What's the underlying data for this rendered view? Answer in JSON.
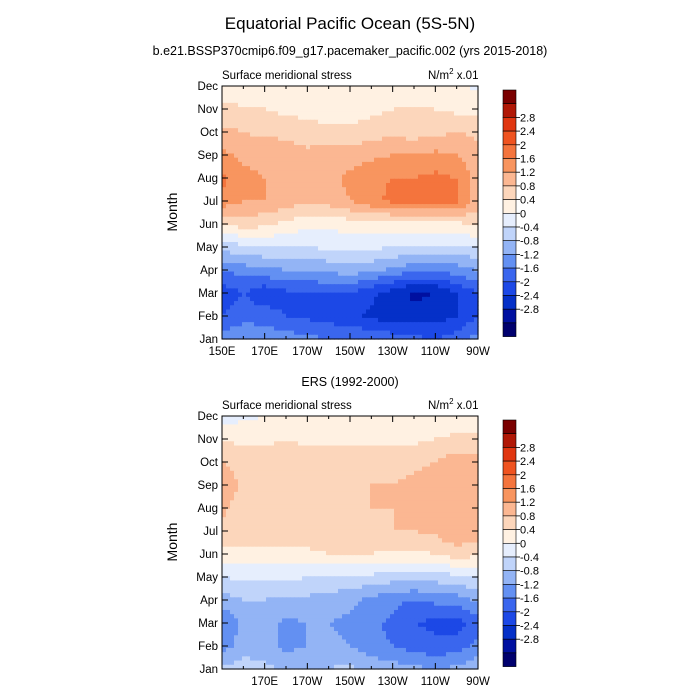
{
  "title": "Equatorial Pacific Ocean (5S-5N)",
  "colors": {
    "levels": [
      "#00006e",
      "#0010a0",
      "#0530c8",
      "#1c48e6",
      "#3a66ee",
      "#6390f2",
      "#93b4f5",
      "#c0d4fa",
      "#e6eefd",
      "#fff1e2",
      "#fcd6bb",
      "#fbb792",
      "#f8955f",
      "#f4743d",
      "#ef5320",
      "#e03610",
      "#b01806",
      "#7a0000"
    ]
  },
  "chart_data": [
    {
      "type": "heatmap",
      "title": "b.e21.BSSP370cmip6.f09_g17.pacemaker_pacific.002 (yrs 2015-2018)",
      "left_label": "Surface meridional stress",
      "units_prefix": "N/m",
      "units_exp": "2",
      "units_suffix": " x.01",
      "ylabel": "Month",
      "y_ticks": [
        "Jan",
        "Feb",
        "Mar",
        "Apr",
        "May",
        "Jun",
        "Jul",
        "Aug",
        "Sep",
        "Oct",
        "Nov",
        "Dec"
      ],
      "x_ticks": [
        "150E",
        "170E",
        "170W",
        "150W",
        "130W",
        "110W",
        "90W"
      ],
      "x": [
        150,
        160,
        170,
        180,
        190,
        200,
        210,
        220,
        230,
        240,
        250,
        260,
        270
      ],
      "values": [
        [
          -1.4,
          -1.2,
          -1.3,
          -1.4,
          -1.5,
          -1.6,
          -1.6,
          -1.7,
          -1.8,
          -1.9,
          -2.0,
          -1.8,
          -1.4
        ],
        [
          -2.0,
          -1.8,
          -1.8,
          -2.0,
          -2.1,
          -2.2,
          -2.3,
          -2.5,
          -2.6,
          -2.6,
          -2.6,
          -2.4,
          -2.0
        ],
        [
          -2.2,
          -2.0,
          -2.3,
          -2.1,
          -2.0,
          -2.0,
          -2.0,
          -2.3,
          -2.6,
          -2.9,
          -2.8,
          -2.4,
          -2.0
        ],
        [
          -1.6,
          -1.4,
          -1.3,
          -1.2,
          -1.2,
          -1.1,
          -1.0,
          -1.1,
          -1.3,
          -1.5,
          -1.5,
          -1.4,
          -1.2
        ],
        [
          -0.6,
          -0.5,
          -0.4,
          -0.4,
          -0.4,
          -0.3,
          -0.3,
          -0.3,
          -0.4,
          -0.4,
          -0.5,
          -0.5,
          -0.4
        ],
        [
          0.4,
          0.6,
          0.5,
          0.3,
          0.1,
          0.1,
          0.2,
          0.2,
          0.2,
          0.2,
          0.3,
          0.3,
          0.5
        ],
        [
          1.5,
          1.2,
          1.2,
          1.0,
          0.9,
          1.0,
          1.2,
          1.5,
          1.7,
          1.8,
          1.8,
          1.7,
          1.0
        ],
        [
          1.7,
          1.3,
          1.2,
          1.1,
          1.0,
          1.1,
          1.3,
          1.5,
          1.6,
          1.6,
          1.7,
          1.6,
          1.0
        ],
        [
          1.3,
          1.1,
          1.1,
          1.0,
          0.9,
          1.0,
          1.0,
          1.1,
          1.2,
          1.2,
          1.3,
          1.2,
          0.9
        ],
        [
          0.9,
          0.8,
          0.7,
          0.7,
          0.6,
          0.5,
          0.5,
          0.6,
          0.7,
          0.6,
          0.7,
          0.8,
          0.7
        ],
        [
          0.5,
          0.4,
          0.4,
          0.3,
          0.2,
          0.2,
          0.2,
          0.3,
          0.4,
          0.4,
          0.4,
          0.3,
          0.3
        ],
        [
          0.2,
          0.3,
          0.2,
          0.1,
          0.1,
          0.0,
          0.0,
          0.1,
          0.2,
          0.1,
          0.1,
          0.1,
          -0.1
        ]
      ],
      "colorbar_labels": [
        "2.8",
        "2.4",
        "2",
        "1.6",
        "1.2",
        "0.8",
        "0.4",
        "0",
        "-0.4",
        "-0.8",
        "-1.2",
        "-1.6",
        "-2",
        "-2.4",
        "-2.8"
      ]
    },
    {
      "type": "heatmap",
      "title": "ERS (1992-2000)",
      "left_label": "Surface meridional stress",
      "units_prefix": "N/m",
      "units_exp": "2",
      "units_suffix": " x.01",
      "ylabel": "Month",
      "y_ticks": [
        "Jan",
        "Feb",
        "Mar",
        "Apr",
        "May",
        "Jun",
        "Jul",
        "Aug",
        "Sep",
        "Oct",
        "Nov",
        "Dec"
      ],
      "x_ticks": [
        "170E",
        "170W",
        "150W",
        "130W",
        "110W",
        "90W"
      ],
      "x": [
        150,
        160,
        170,
        180,
        190,
        200,
        210,
        220,
        230,
        240,
        250,
        260,
        270
      ],
      "values": [
        [
          -0.7,
          -0.6,
          -0.7,
          -0.9,
          -0.8,
          -0.8,
          -0.7,
          -0.9,
          -1.0,
          -1.1,
          -1.2,
          -1.1,
          -0.9
        ],
        [
          -1.4,
          -1.0,
          -1.0,
          -1.3,
          -1.2,
          -1.1,
          -1.2,
          -1.5,
          -1.6,
          -1.8,
          -1.9,
          -1.8,
          -1.5
        ],
        [
          -1.6,
          -1.1,
          -1.0,
          -1.3,
          -1.2,
          -1.2,
          -1.3,
          -1.5,
          -1.7,
          -2.0,
          -2.1,
          -2.2,
          -1.8
        ],
        [
          -1.0,
          -0.8,
          -0.8,
          -0.9,
          -0.9,
          -1.0,
          -1.1,
          -1.3,
          -1.5,
          -1.6,
          -1.5,
          -1.4,
          -1.1
        ],
        [
          -0.4,
          -0.3,
          -0.3,
          -0.3,
          -0.4,
          -0.4,
          -0.5,
          -0.5,
          -0.6,
          -0.6,
          -0.6,
          -0.5,
          -0.4
        ],
        [
          0.3,
          0.3,
          0.3,
          0.3,
          0.3,
          0.4,
          0.4,
          0.4,
          0.3,
          0.3,
          0.4,
          0.6,
          0.5
        ],
        [
          0.7,
          0.6,
          0.6,
          0.7,
          0.7,
          0.7,
          0.7,
          0.7,
          0.8,
          0.8,
          0.9,
          1.2,
          1.0
        ],
        [
          0.9,
          0.6,
          0.7,
          0.7,
          0.7,
          0.8,
          0.7,
          0.8,
          0.8,
          0.9,
          0.9,
          1.2,
          1.1
        ],
        [
          1.1,
          0.7,
          0.7,
          0.7,
          0.7,
          0.8,
          0.8,
          0.8,
          0.8,
          0.9,
          1.0,
          1.2,
          1.1
        ],
        [
          0.8,
          0.6,
          0.6,
          0.6,
          0.6,
          0.7,
          0.7,
          0.7,
          0.6,
          0.7,
          0.8,
          1.0,
          1.0
        ],
        [
          0.4,
          0.3,
          0.3,
          0.4,
          0.3,
          0.3,
          0.3,
          0.3,
          0.3,
          0.3,
          0.4,
          0.5,
          0.5
        ],
        [
          -0.2,
          -0.1,
          0.0,
          0.1,
          0.0,
          0.0,
          0.1,
          0.0,
          0.0,
          0.0,
          0.1,
          0.1,
          0.0
        ]
      ],
      "colorbar_labels": [
        "2.8",
        "2.4",
        "2",
        "1.6",
        "1.2",
        "0.8",
        "0.4",
        "0",
        "-0.4",
        "-0.8",
        "-1.2",
        "-1.6",
        "-2",
        "-2.4",
        "-2.8"
      ]
    }
  ]
}
